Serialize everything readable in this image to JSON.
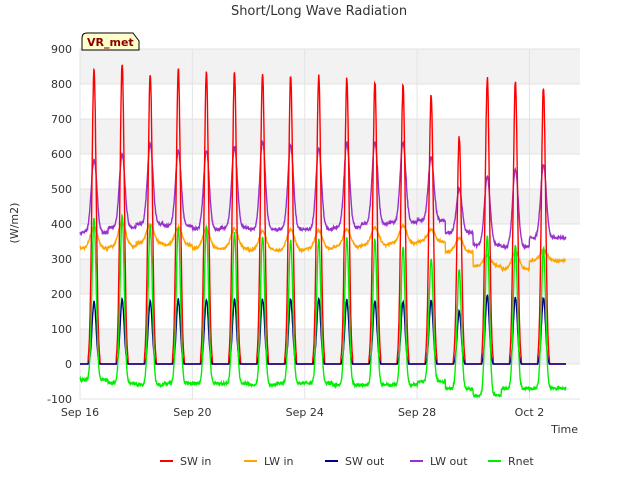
{
  "chart_data": {
    "type": "line",
    "title": "Short/Long Wave Radiation",
    "xlabel": "Time",
    "ylabel": "(W/m2)",
    "badge": "VR_met",
    "ylim": [
      -100,
      900
    ],
    "yticks": [
      -100,
      0,
      100,
      200,
      300,
      400,
      500,
      600,
      700,
      800,
      900
    ],
    "xlim_days": [
      0,
      17.8
    ],
    "xticks": [
      {
        "day": 0,
        "label": "Sep 16"
      },
      {
        "day": 4,
        "label": "Sep 20"
      },
      {
        "day": 8,
        "label": "Sep 24"
      },
      {
        "day": 12,
        "label": "Sep 28"
      },
      {
        "day": 16,
        "label": "Oct 2"
      }
    ],
    "grid": true,
    "legend_position": "bottom",
    "day_peaks": [
      {
        "day": 0,
        "sw_in": 840,
        "lw_in": 390,
        "sw_out": 180,
        "lw_out": 585,
        "rnet": 415,
        "lw_in_base": 330,
        "lw_out_base": 375,
        "rnet_night": -45
      },
      {
        "day": 1,
        "sw_in": 860,
        "lw_in": 405,
        "sw_out": 185,
        "lw_out": 600,
        "rnet": 425,
        "lw_in_base": 335,
        "lw_out_base": 390,
        "rnet_night": -55
      },
      {
        "day": 2,
        "sw_in": 830,
        "lw_in": 400,
        "sw_out": 180,
        "lw_out": 630,
        "rnet": 395,
        "lw_in_base": 345,
        "lw_out_base": 400,
        "rnet_night": -60
      },
      {
        "day": 3,
        "sw_in": 840,
        "lw_in": 390,
        "sw_out": 185,
        "lw_out": 610,
        "rnet": 390,
        "lw_in_base": 340,
        "lw_out_base": 395,
        "rnet_night": -55
      },
      {
        "day": 4,
        "sw_in": 835,
        "lw_in": 385,
        "sw_out": 185,
        "lw_out": 610,
        "rnet": 395,
        "lw_in_base": 330,
        "lw_out_base": 385,
        "rnet_night": -55
      },
      {
        "day": 5,
        "sw_in": 830,
        "lw_in": 385,
        "sw_out": 185,
        "lw_out": 620,
        "rnet": 375,
        "lw_in_base": 330,
        "lw_out_base": 390,
        "rnet_night": -55
      },
      {
        "day": 6,
        "sw_in": 830,
        "lw_in": 380,
        "sw_out": 185,
        "lw_out": 635,
        "rnet": 365,
        "lw_in_base": 325,
        "lw_out_base": 385,
        "rnet_night": -60
      },
      {
        "day": 7,
        "sw_in": 825,
        "lw_in": 385,
        "sw_out": 185,
        "lw_out": 625,
        "rnet": 355,
        "lw_in_base": 325,
        "lw_out_base": 385,
        "rnet_night": -55
      },
      {
        "day": 8,
        "sw_in": 820,
        "lw_in": 380,
        "sw_out": 185,
        "lw_out": 615,
        "rnet": 355,
        "lw_in_base": 330,
        "lw_out_base": 385,
        "rnet_night": -55
      },
      {
        "day": 9,
        "sw_in": 815,
        "lw_in": 385,
        "sw_out": 180,
        "lw_out": 630,
        "rnet": 360,
        "lw_in_base": 335,
        "lw_out_base": 390,
        "rnet_night": -60
      },
      {
        "day": 10,
        "sw_in": 805,
        "lw_in": 390,
        "sw_out": 180,
        "lw_out": 635,
        "rnet": 355,
        "lw_in_base": 340,
        "lw_out_base": 400,
        "rnet_night": -60
      },
      {
        "day": 11,
        "sw_in": 795,
        "lw_in": 395,
        "sw_out": 180,
        "lw_out": 635,
        "rnet": 335,
        "lw_in_base": 345,
        "lw_out_base": 405,
        "rnet_night": -60
      },
      {
        "day": 12,
        "sw_in": 770,
        "lw_in": 385,
        "sw_out": 180,
        "lw_out": 590,
        "rnet": 300,
        "lw_in_base": 350,
        "lw_out_base": 410,
        "rnet_night": -50
      },
      {
        "day": 13,
        "sw_in": 650,
        "lw_in": 360,
        "sw_out": 150,
        "lw_out": 500,
        "rnet": 270,
        "lw_in_base": 320,
        "lw_out_base": 375,
        "rnet_night": -70
      },
      {
        "day": 14,
        "sw_in": 815,
        "lw_in": 310,
        "sw_out": 195,
        "lw_out": 535,
        "rnet": 365,
        "lw_in_base": 280,
        "lw_out_base": 340,
        "rnet_night": -90
      },
      {
        "day": 15,
        "sw_in": 805,
        "lw_in": 320,
        "sw_out": 190,
        "lw_out": 555,
        "rnet": 340,
        "lw_in_base": 270,
        "lw_out_base": 335,
        "rnet_night": -70
      },
      {
        "day": 16,
        "sw_in": 790,
        "lw_in": 325,
        "sw_out": 190,
        "lw_out": 570,
        "rnet": 330,
        "lw_in_base": 295,
        "lw_out_base": 360,
        "rnet_night": -70
      }
    ],
    "series": [
      {
        "name": "SW in",
        "key": "sw_in",
        "color": "#ff0000"
      },
      {
        "name": "LW in",
        "key": "lw_in",
        "color": "#ffa500"
      },
      {
        "name": "SW out",
        "key": "sw_out",
        "color": "#00008b"
      },
      {
        "name": "LW out",
        "key": "lw_out",
        "color": "#9932cc"
      },
      {
        "name": "Rnet",
        "key": "rnet",
        "color": "#00ee00"
      }
    ]
  }
}
